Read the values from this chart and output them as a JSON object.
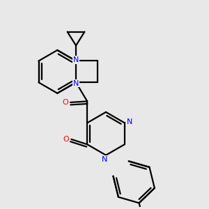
{
  "bg_color": "#e8e8e8",
  "bond_color": "#000000",
  "nitrogen_color": "#0000ff",
  "oxygen_color": "#ff0000",
  "lw": 1.6,
  "figsize": [
    3.0,
    3.0
  ],
  "dpi": 100,
  "xlim": [
    0,
    10
  ],
  "ylim": [
    0,
    10
  ]
}
